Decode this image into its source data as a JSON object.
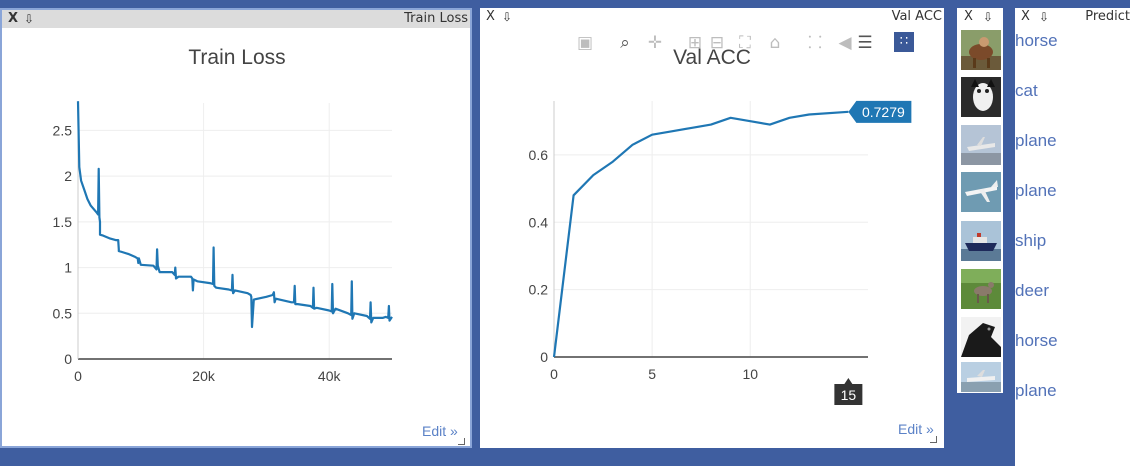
{
  "panes": {
    "train": {
      "close": "X",
      "download": "⇩",
      "title": "Train Loss"
    },
    "val": {
      "close": "X",
      "download": "⇩",
      "title": "Val ACC"
    },
    "images": {
      "close": "X",
      "download": "⇩"
    },
    "pred": {
      "close": "X",
      "download": "⇩",
      "title": "Predict"
    }
  },
  "train_chart": {
    "title": "Train Loss",
    "edit": "Edit »",
    "y_ticks": [
      "0",
      "0.5",
      "1",
      "1.5",
      "2",
      "2.5"
    ],
    "x_ticks": [
      "0",
      "20k",
      "40k"
    ]
  },
  "val_chart": {
    "title": "Val ACC",
    "edit": "Edit »",
    "y_ticks": [
      "0",
      "0.2",
      "0.4",
      "0.6"
    ],
    "x_ticks": [
      "0",
      "5",
      "10"
    ],
    "hover_value": "0.7279",
    "hover_x": "15"
  },
  "modebar": {
    "icons": [
      "camera-icon",
      "zoom-icon",
      "pan-icon",
      "zoom-in-icon",
      "zoom-out-icon",
      "autoscale-icon",
      "reset-axes-icon",
      "spike-lines-icon",
      "hover-closest-icon",
      "hover-compare-icon",
      "plotly-logo-icon"
    ]
  },
  "predictions": [
    "horse",
    "cat",
    "plane",
    "plane",
    "ship",
    "deer",
    "horse",
    "plane"
  ],
  "colors": {
    "line": "#1f77b4",
    "background": "#3f5ea0",
    "label": "#5272b8"
  },
  "chart_data": [
    {
      "type": "line",
      "title": "Train Loss",
      "xlabel": "",
      "ylabel": "",
      "xlim": [
        0,
        50000
      ],
      "ylim": [
        0,
        2.8
      ],
      "grid": true,
      "series": [
        {
          "x": [
            0,
            200,
            500,
            1000,
            1500,
            2000,
            2500,
            3000,
            3200,
            3300,
            3400,
            3500,
            3500,
            4000,
            5000,
            6000,
            6400,
            6500,
            6500,
            7000,
            8000,
            9000,
            9500,
            9600,
            9700,
            10000,
            12000,
            12500,
            12600,
            12700,
            13000,
            15000,
            15400,
            15500,
            15600,
            16000,
            18000,
            18200,
            18300,
            18400,
            19000,
            21000,
            21500,
            21600,
            21700,
            22000,
            24000,
            24500,
            24600,
            24700,
            25000,
            27000,
            27500,
            27600,
            27700,
            28000,
            30000,
            31000,
            31200,
            31300,
            31500,
            34000,
            34400,
            34500,
            34600,
            35000,
            37000,
            37400,
            37500,
            37600,
            38000,
            40000,
            40400,
            40500,
            40600,
            41000,
            43000,
            43500,
            43600,
            43700,
            44000,
            46000,
            46500,
            46600,
            46700,
            47000,
            48500,
            49000,
            49400,
            49500,
            49600,
            50000
          ],
          "y": [
            2.82,
            2.1,
            1.95,
            1.85,
            1.75,
            1.68,
            1.64,
            1.6,
            1.58,
            2.08,
            1.55,
            1.5,
            1.36,
            1.35,
            1.32,
            1.3,
            1.3,
            1.2,
            1.18,
            1.17,
            1.15,
            1.12,
            1.1,
            1.05,
            1.1,
            1.03,
            1.02,
            0.98,
            1.2,
            1.02,
            0.95,
            0.95,
            0.92,
            1.0,
            0.88,
            0.9,
            0.9,
            0.88,
            0.75,
            0.87,
            0.85,
            0.83,
            0.82,
            1.22,
            0.8,
            0.78,
            0.76,
            0.75,
            0.92,
            0.72,
            0.75,
            0.72,
            0.7,
            0.68,
            0.35,
            0.65,
            0.68,
            0.7,
            0.73,
            0.62,
            0.66,
            0.62,
            0.62,
            0.8,
            0.6,
            0.6,
            0.58,
            0.56,
            0.78,
            0.55,
            0.56,
            0.53,
            0.52,
            0.82,
            0.5,
            0.55,
            0.5,
            0.48,
            0.85,
            0.44,
            0.5,
            0.47,
            0.44,
            0.62,
            0.4,
            0.45,
            0.45,
            0.46,
            0.45,
            0.58,
            0.42,
            0.46
          ]
        }
      ]
    },
    {
      "type": "line",
      "title": "Val ACC",
      "xlabel": "",
      "ylabel": "",
      "xlim": [
        0,
        16
      ],
      "ylim": [
        0,
        0.76
      ],
      "grid": true,
      "series": [
        {
          "x": [
            0,
            1,
            2,
            3,
            4,
            5,
            6,
            7,
            8,
            9,
            10,
            11,
            12,
            13,
            15
          ],
          "y": [
            0,
            0.48,
            0.54,
            0.58,
            0.63,
            0.66,
            0.67,
            0.68,
            0.69,
            0.71,
            0.7,
            0.69,
            0.71,
            0.72,
            0.7279
          ]
        }
      ]
    }
  ]
}
